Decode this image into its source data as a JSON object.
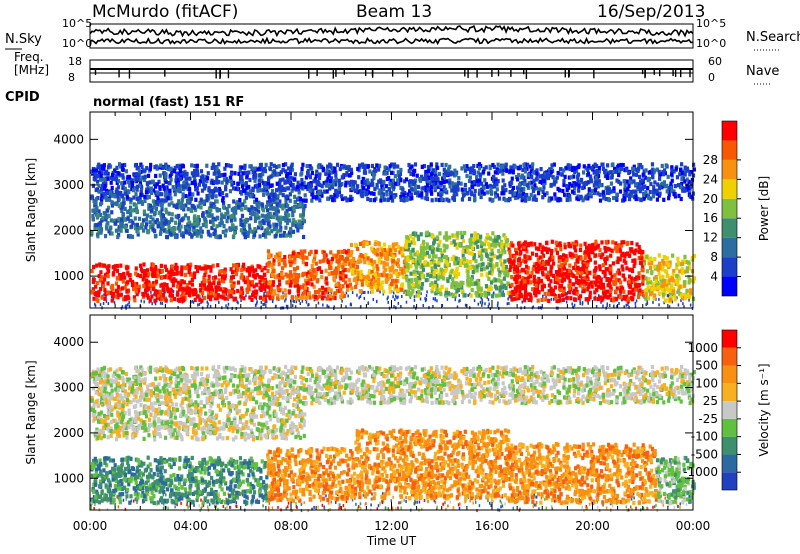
{
  "header": {
    "radar": "McMurdo (fitACF)",
    "beam": "Beam 13",
    "date": "16/Sep/2013"
  },
  "summary_panel": {
    "left_top_label": "N.Sky",
    "left_bottom_label": "Freq. [MHz]",
    "right_top_label": "N.Search",
    "right_bottom_label": "Nave",
    "nsky_ticks": [
      "10^5",
      "10^0"
    ],
    "freq_ticks": [
      "18",
      "8"
    ],
    "nave_ticks": [
      "60",
      "0"
    ],
    "cpid_label": "CPID",
    "cpid_value": "normal (fast) 151 RF"
  },
  "chart_data": [
    {
      "type": "heatmap",
      "name": "power",
      "ylabel": "Slant Range [km]",
      "xlabel": "",
      "ylim": [
        300,
        4600
      ],
      "yticks": [
        "1000",
        "2000",
        "3000",
        "4000"
      ],
      "xlim": [
        0,
        24
      ],
      "colorbar": {
        "label": "Power [dB]",
        "ticks": [
          "4",
          "8",
          "12",
          "16",
          "20",
          "24",
          "28"
        ],
        "colors": [
          "#0000ff",
          "#1a3fc9",
          "#2d6ea0",
          "#3e8f6e",
          "#7fc040",
          "#f0d000",
          "#f89010",
          "#f85800",
          "#ff0000"
        ]
      },
      "regions": [
        {
          "t0": 0.0,
          "t1": 7.0,
          "r0": 500,
          "r1": 1300,
          "level": 8
        },
        {
          "t0": 7.0,
          "t1": 10.3,
          "r0": 550,
          "r1": 1600,
          "level": 7
        },
        {
          "t0": 10.3,
          "t1": 12.5,
          "r0": 700,
          "r1": 1800,
          "level": 6
        },
        {
          "t0": 12.5,
          "t1": 16.6,
          "r0": 600,
          "r1": 2000,
          "level": 4
        },
        {
          "t0": 16.6,
          "t1": 22.0,
          "r0": 500,
          "r1": 1800,
          "level": 8
        },
        {
          "t0": 22.0,
          "t1": 24.0,
          "r0": 500,
          "r1": 1500,
          "level": 5
        },
        {
          "t0": 0.0,
          "t1": 8.5,
          "r0": 1900,
          "r1": 2700,
          "level": 2
        },
        {
          "t0": 0.0,
          "t1": 24.0,
          "r0": 2700,
          "r1": 3500,
          "level": 1
        }
      ]
    },
    {
      "type": "heatmap",
      "name": "velocity",
      "ylabel": "Slant Range [km]",
      "xlabel": "Time UT",
      "ylim": [
        300,
        4600
      ],
      "yticks": [
        "1000",
        "2000",
        "3000",
        "4000"
      ],
      "xticks": [
        "00:00",
        "04:00",
        "08:00",
        "12:00",
        "16:00",
        "20:00",
        "00:00"
      ],
      "xlim": [
        0,
        24
      ],
      "colorbar": {
        "label": "Velocity [m s⁻¹]",
        "ticks": [
          "1000",
          "500",
          "100",
          "25",
          "-25",
          "-100",
          "-500",
          "-1000"
        ],
        "colors": [
          "#2040c0",
          "#2a6aa0",
          "#3e8f6e",
          "#60c040",
          "#c8c8c8",
          "#f8b020",
          "#f89010",
          "#f86010",
          "#ff0000"
        ]
      },
      "regions": [
        {
          "t0": 0.0,
          "t1": 7.0,
          "r0": 500,
          "r1": 1500,
          "level": 2
        },
        {
          "t0": 7.0,
          "t1": 10.5,
          "r0": 550,
          "r1": 1700,
          "level": 6
        },
        {
          "t0": 10.5,
          "t1": 16.6,
          "r0": 600,
          "r1": 2100,
          "level": 6
        },
        {
          "t0": 16.6,
          "t1": 22.5,
          "r0": 500,
          "r1": 1800,
          "level": 6
        },
        {
          "t0": 22.5,
          "t1": 24.0,
          "r0": 500,
          "r1": 1500,
          "level": 3
        },
        {
          "t0": 0.0,
          "t1": 8.5,
          "r0": 1900,
          "r1": 2700,
          "level": 4
        },
        {
          "t0": 0.0,
          "t1": 24.0,
          "r0": 2700,
          "r1": 3500,
          "level": 4
        }
      ]
    }
  ]
}
